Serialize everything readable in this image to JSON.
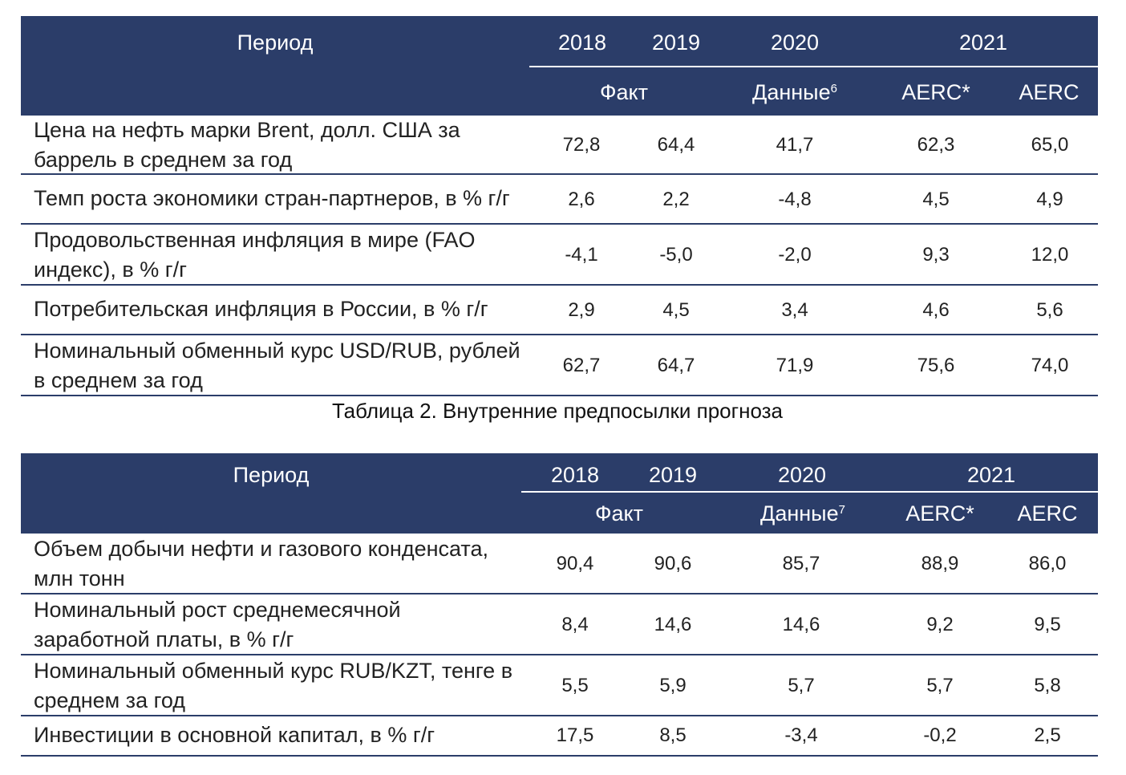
{
  "table1": {
    "header": {
      "period": "Период",
      "years": [
        "2018",
        "2019",
        "2020",
        "2021"
      ],
      "fact": "Факт",
      "data_label": "Данные",
      "data_footnote": "6",
      "aerc_star": "AERC*",
      "aerc": "AERC"
    },
    "rows": [
      {
        "label": "Цена на нефть марки Brent, долл. США за баррель в среднем за год",
        "values": [
          "72,8",
          "64,4",
          "41,7",
          "62,3",
          "65,0"
        ]
      },
      {
        "label": "Темп роста экономики стран-партнеров, в % г/г",
        "values": [
          "2,6",
          "2,2",
          "-4,8",
          "4,5",
          "4,9"
        ]
      },
      {
        "label": "Продовольственная инфляция в мире (FAO индекс), в % г/г",
        "values": [
          "-4,1",
          "-5,0",
          "-2,0",
          "9,3",
          "12,0"
        ]
      },
      {
        "label": "Потребительская инфляция в России, в % г/г",
        "values": [
          "2,9",
          "4,5",
          "3,4",
          "4,6",
          "5,6"
        ]
      },
      {
        "label": "Номинальный обменный курс USD/RUB, рублей в среднем за год",
        "values": [
          "62,7",
          "64,7",
          "71,9",
          "75,6",
          "74,0"
        ]
      }
    ]
  },
  "caption": "Таблица 2. Внутренние предпосылки прогноза",
  "table2": {
    "header": {
      "period": "Период",
      "years": [
        "2018",
        "2019",
        "2020",
        "2021"
      ],
      "fact": "Факт",
      "data_label": "Данные",
      "data_footnote": "7",
      "aerc_star": "AERC*",
      "aerc": "AERC"
    },
    "rows": [
      {
        "label": "Объем добычи нефти и газового конденсата, млн тонн",
        "values": [
          "90,4",
          "90,6",
          "85,7",
          "88,9",
          "86,0"
        ]
      },
      {
        "label": "Номинальный рост среднемесячной заработной платы, в % г/г",
        "values": [
          "8,4",
          "14,6",
          "14,6",
          "9,2",
          "9,5"
        ]
      },
      {
        "label": "Номинальный обменный курс RUB/KZT, тенге в среднем за год",
        "values": [
          "5,5",
          "5,9",
          "5,7",
          "5,7",
          "5,8"
        ]
      },
      {
        "label": "Инвестиции в основной капитал, в % г/г",
        "values": [
          "17,5",
          "8,5",
          "-3,4",
          "-0,2",
          "2,5"
        ]
      }
    ]
  },
  "colors": {
    "header_bg": "#2b3d69",
    "header_text": "#ffffff",
    "rule": "#2b3d69"
  }
}
